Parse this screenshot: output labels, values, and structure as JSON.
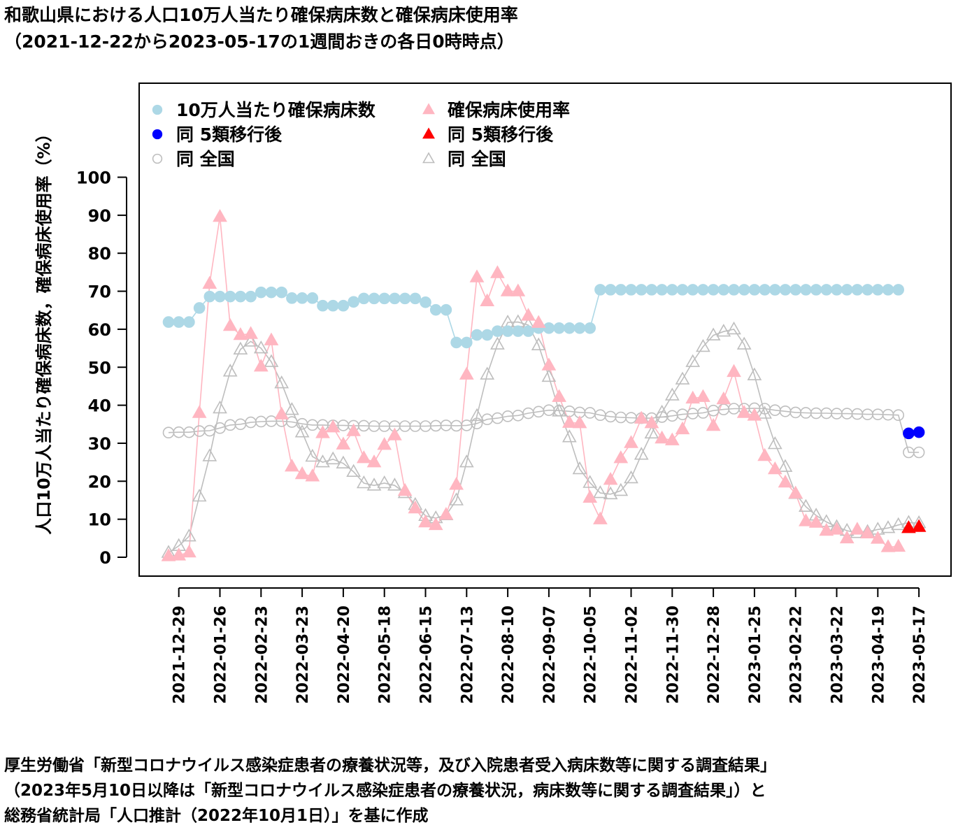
{
  "title": {
    "line1": "和歌山県における人口10万人当たり確保病床数と確保病床使用率",
    "line2": "（2021-12-22から2023-05-17の1週間おきの各日0時時点）"
  },
  "footer": {
    "line1": "厚生労働省「新型コロナウイルス感染症患者の療養状況等，及び入院患者受入病床数等に関する調査結果」",
    "line2": "（2023年5月10日以降は「新型コロナウイルス感染症患者の療養状況，病床数等に関する調査結果」）と",
    "line3": "総務省統計局「人口推計（2022年10月1日）」を基に作成"
  },
  "chart_data": {
    "type": "line",
    "ylabel": "人口10万人当たり確保病床数，確保病床使用率（%）",
    "ylim": [
      0,
      100
    ],
    "yticks": [
      "0",
      "10",
      "20",
      "30",
      "40",
      "50",
      "60",
      "70",
      "80",
      "90",
      "100"
    ],
    "x_start": "2021-12-22",
    "x_interval_days": 7,
    "x_count": 74,
    "xtick_labels": [
      "2021-12-29",
      "2022-01-26",
      "2022-02-23",
      "2022-03-23",
      "2022-04-20",
      "2022-05-18",
      "2022-06-15",
      "2022-07-13",
      "2022-08-10",
      "2022-09-07",
      "2022-10-05",
      "2022-11-02",
      "2022-11-30",
      "2022-12-28",
      "2023-01-25",
      "2023-02-22",
      "2023-03-22",
      "2023-04-19",
      "2023-05-17"
    ],
    "grid": false,
    "legend_position": "top-left",
    "colors": {
      "beds": "#add8e6",
      "beds_post": "#0000ff",
      "beds_nat": "#bebebe",
      "usage": "#ffb6c1",
      "usage_post": "#ff0000",
      "usage_nat": "#bebebe"
    },
    "legend": [
      {
        "label": "10万人当たり確保病床数",
        "marker": "circle-filled",
        "color": "#add8e6"
      },
      {
        "label": "確保病床使用率",
        "marker": "triangle-filled",
        "color": "#ffb6c1"
      },
      {
        "label": "同 5類移行後",
        "marker": "circle-filled",
        "color": "#0000ff"
      },
      {
        "label": "同 5類移行後",
        "marker": "triangle-filled",
        "color": "#ff0000"
      },
      {
        "label": "同 全国",
        "marker": "circle-open",
        "color": "#bebebe"
      },
      {
        "label": "同 全国",
        "marker": "triangle-open",
        "color": "#bebebe"
      }
    ],
    "series": [
      {
        "name": "10万人当たり確保病床数",
        "values": [
          61.9,
          61.9,
          61.9,
          65.6,
          68.6,
          68.6,
          68.6,
          68.6,
          68.6,
          69.7,
          69.7,
          69.7,
          68.2,
          68.2,
          68.2,
          66.2,
          66.2,
          66.2,
          67.2,
          68.1,
          68.1,
          68.1,
          68.1,
          68.1,
          68.1,
          67.1,
          65.1,
          65.1,
          56.5,
          56.5,
          58.5,
          58.5,
          59.5,
          59.5,
          59.5,
          59.5,
          60.3,
          60.3,
          60.3,
          60.3,
          60.3,
          60.3,
          70.4,
          70.4,
          70.4,
          70.4,
          70.4,
          70.4,
          70.4,
          70.4,
          70.4,
          70.4,
          70.4,
          70.4,
          70.4,
          70.4,
          70.4,
          70.4,
          70.4,
          70.4,
          70.4,
          70.4,
          70.4,
          70.4,
          70.4,
          70.4,
          70.4,
          70.4,
          70.4,
          70.4,
          70.4,
          70.4,
          null,
          null
        ]
      },
      {
        "name": "同 5類移行後",
        "values": [
          null,
          null,
          null,
          null,
          null,
          null,
          null,
          null,
          null,
          null,
          null,
          null,
          null,
          null,
          null,
          null,
          null,
          null,
          null,
          null,
          null,
          null,
          null,
          null,
          null,
          null,
          null,
          null,
          null,
          null,
          null,
          null,
          null,
          null,
          null,
          null,
          null,
          null,
          null,
          null,
          null,
          null,
          null,
          null,
          null,
          null,
          null,
          null,
          null,
          null,
          null,
          null,
          null,
          null,
          null,
          null,
          null,
          null,
          null,
          null,
          null,
          null,
          null,
          null,
          null,
          null,
          null,
          null,
          null,
          null,
          null,
          null,
          32.6,
          32.9
        ]
      },
      {
        "name": "同 全国",
        "values": [
          32.8,
          32.9,
          32.9,
          33.2,
          33.3,
          34.0,
          34.8,
          35.0,
          35.5,
          35.7,
          35.8,
          35.8,
          35.6,
          35.1,
          34.8,
          34.8,
          34.7,
          34.7,
          34.6,
          34.6,
          34.5,
          34.5,
          34.5,
          34.5,
          34.5,
          34.5,
          34.6,
          34.7,
          34.6,
          34.7,
          35.2,
          36.3,
          36.6,
          37.1,
          37.3,
          37.9,
          38.3,
          38.7,
          38.6,
          38.4,
          38.1,
          38.0,
          37.4,
          37.0,
          36.8,
          36.7,
          36.6,
          36.6,
          36.9,
          37.2,
          37.6,
          37.8,
          38.0,
          38.6,
          38.9,
          39.1,
          39.1,
          39.2,
          39.1,
          38.7,
          38.4,
          38.1,
          38.0,
          37.9,
          37.9,
          37.8,
          37.8,
          37.7,
          37.6,
          37.6,
          37.5,
          37.4,
          27.6,
          27.6
        ]
      },
      {
        "name": "確保病床使用率",
        "values": [
          0.3,
          0.5,
          1.3,
          38.0,
          72.0,
          89.6,
          60.9,
          58.5,
          58.8,
          50.2,
          57.1,
          37.6,
          23.9,
          21.9,
          21.3,
          32.7,
          34.2,
          29.7,
          33.2,
          26.1,
          25.0,
          29.6,
          32.1,
          17.5,
          12.9,
          9.2,
          8.5,
          11.2,
          19.1,
          48.1,
          73.7,
          67.4,
          74.8,
          70.0,
          70.0,
          63.6,
          61.7,
          50.5,
          42.2,
          35.4,
          35.3,
          15.7,
          10.0,
          20.4,
          26.1,
          30.1,
          36.5,
          35.3,
          31.3,
          30.8,
          33.7,
          41.8,
          42.2,
          34.6,
          41.6,
          48.8,
          38.0,
          37.3,
          26.7,
          23.2,
          19.7,
          16.8,
          9.5,
          9.1,
          7.0,
          7.3,
          5.0,
          7.3,
          6.3,
          4.9,
          2.7,
          2.8,
          null,
          null
        ]
      },
      {
        "name": "同 5類移行後",
        "values": [
          null,
          null,
          null,
          null,
          null,
          null,
          null,
          null,
          null,
          null,
          null,
          null,
          null,
          null,
          null,
          null,
          null,
          null,
          null,
          null,
          null,
          null,
          null,
          null,
          null,
          null,
          null,
          null,
          null,
          null,
          null,
          null,
          null,
          null,
          null,
          null,
          null,
          null,
          null,
          null,
          null,
          null,
          null,
          null,
          null,
          null,
          null,
          null,
          null,
          null,
          null,
          null,
          null,
          null,
          null,
          null,
          null,
          null,
          null,
          null,
          null,
          null,
          null,
          null,
          null,
          null,
          null,
          null,
          null,
          null,
          null,
          null,
          7.7,
          8.0
        ]
      },
      {
        "name": "同 全国",
        "values": [
          1.2,
          3.0,
          5.5,
          16.0,
          26.6,
          39.2,
          48.9,
          54.7,
          56.8,
          55.0,
          51.4,
          45.8,
          38.8,
          32.9,
          26.5,
          25.0,
          25.8,
          24.7,
          22.5,
          19.5,
          18.9,
          19.5,
          18.9,
          16.9,
          13.8,
          10.9,
          10.3,
          11.1,
          15.0,
          25.0,
          37.2,
          48.1,
          56.0,
          61.8,
          61.9,
          61.1,
          55.8,
          47.5,
          38.4,
          31.6,
          23.2,
          19.6,
          16.9,
          16.6,
          17.5,
          20.8,
          27.0,
          32.6,
          38.1,
          42.6,
          46.8,
          51.4,
          55.4,
          58.4,
          59.4,
          60.0,
          56.0,
          47.9,
          37.8,
          29.8,
          23.8,
          16.7,
          13.3,
          11.0,
          9.3,
          8.0,
          7.0,
          6.4,
          6.7,
          7.3,
          7.7,
          8.5,
          9.1,
          9.0
        ]
      }
    ]
  }
}
